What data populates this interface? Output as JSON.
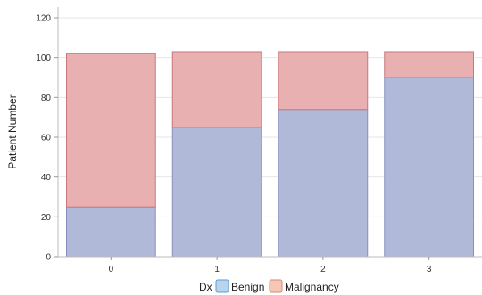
{
  "chart_data": {
    "type": "bar",
    "stacked": true,
    "categories": [
      "0",
      "1",
      "2",
      "3"
    ],
    "series": [
      {
        "name": "Benign",
        "values": [
          25,
          65,
          74,
          90
        ],
        "color": "#b1b9d9",
        "stroke": "#8a8fbf"
      },
      {
        "name": "Malignancy",
        "values": [
          77,
          38,
          29,
          13
        ],
        "color": "#e9b0b1",
        "stroke": "#c9777c"
      }
    ],
    "ylabel": "Patient Number",
    "ylim": [
      0,
      120
    ],
    "yticks": [
      0,
      20,
      40,
      60,
      80,
      100,
      120
    ],
    "grid": true,
    "legend": {
      "title": "Dx",
      "placement": "bottom"
    }
  }
}
